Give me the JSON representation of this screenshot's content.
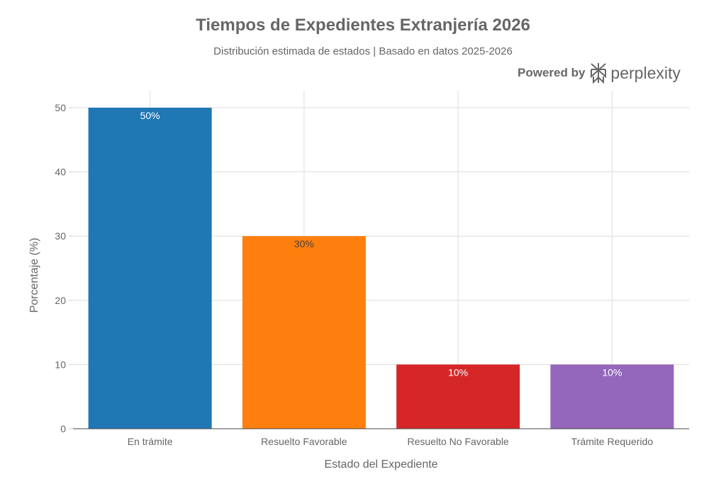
{
  "chart_data": {
    "type": "bar",
    "title": "Tiempos de Expedientes Extranjería 2026",
    "subtitle": "Distribución estimada de estados | Basado en datos 2025-2026",
    "xlabel": "Estado del Expediente",
    "ylabel": "Porcentaje (%)",
    "categories": [
      "En trámite",
      "Resuelto Favorable",
      "Resuelto No Favorable",
      "Trámite Requerido"
    ],
    "values": [
      50,
      30,
      10,
      10
    ],
    "data_labels": [
      "50%",
      "30%",
      "10%",
      "10%"
    ],
    "colors": [
      "#1f77b4",
      "#ff7f0e",
      "#d62728",
      "#9467bd"
    ],
    "label_colors": [
      "#ffffff",
      "#444444",
      "#ffffff",
      "#ffffff"
    ],
    "ylim": [
      0,
      52
    ],
    "yticks": [
      0,
      10,
      20,
      30,
      40,
      50
    ],
    "grid": true,
    "legend": "none"
  },
  "branding": {
    "prefix": "Powered by",
    "name": "perplexity"
  }
}
